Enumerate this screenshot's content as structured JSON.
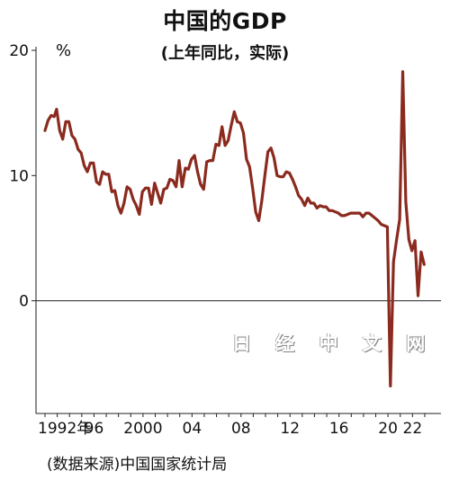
{
  "chart_data": {
    "type": "line",
    "title": "中国的GDP",
    "subtitle": "(上年同比，实际)",
    "ylabel": "%",
    "ylim": [
      -9,
      20
    ],
    "yticks": [
      0,
      10,
      20
    ],
    "x_tick_labels": [
      {
        "t": 1992,
        "label": "1992年"
      },
      {
        "t": 1996,
        "label": "96"
      },
      {
        "t": 2000,
        "label": "2000"
      },
      {
        "t": 2004,
        "label": "04"
      },
      {
        "t": 2008,
        "label": "08"
      },
      {
        "t": 2012,
        "label": "12"
      },
      {
        "t": 2016,
        "label": "16"
      },
      {
        "t": 2020,
        "label": "20"
      },
      {
        "t": 2022,
        "label": "22"
      }
    ],
    "grid": false,
    "series": [
      {
        "color": "#8b2a1e",
        "points": [
          [
            1992.0,
            13.6
          ],
          [
            1992.25,
            14.4
          ],
          [
            1992.5,
            14.8
          ],
          [
            1992.75,
            14.7
          ],
          [
            1992.95,
            15.3
          ],
          [
            1993.2,
            13.6
          ],
          [
            1993.45,
            12.9
          ],
          [
            1993.7,
            14.3
          ],
          [
            1993.95,
            14.3
          ],
          [
            1994.2,
            13.2
          ],
          [
            1994.45,
            12.9
          ],
          [
            1994.7,
            12.1
          ],
          [
            1994.95,
            11.8
          ],
          [
            1995.2,
            10.8
          ],
          [
            1995.45,
            10.3
          ],
          [
            1995.7,
            11.0
          ],
          [
            1995.95,
            11.0
          ],
          [
            1996.2,
            9.5
          ],
          [
            1996.45,
            9.3
          ],
          [
            1996.7,
            10.3
          ],
          [
            1996.95,
            10.1
          ],
          [
            1997.2,
            10.1
          ],
          [
            1997.45,
            8.7
          ],
          [
            1997.7,
            8.8
          ],
          [
            1997.95,
            7.6
          ],
          [
            1998.2,
            7.0
          ],
          [
            1998.45,
            7.8
          ],
          [
            1998.7,
            9.1
          ],
          [
            1998.95,
            8.9
          ],
          [
            1999.2,
            8.1
          ],
          [
            1999.45,
            7.6
          ],
          [
            1999.7,
            6.9
          ],
          [
            1999.95,
            8.7
          ],
          [
            2000.2,
            9.0
          ],
          [
            2000.45,
            9.0
          ],
          [
            2000.7,
            7.7
          ],
          [
            2000.95,
            9.4
          ],
          [
            2001.2,
            8.6
          ],
          [
            2001.45,
            7.8
          ],
          [
            2001.7,
            8.9
          ],
          [
            2001.95,
            9.0
          ],
          [
            2002.2,
            9.7
          ],
          [
            2002.45,
            9.6
          ],
          [
            2002.7,
            9.1
          ],
          [
            2002.95,
            11.2
          ],
          [
            2003.2,
            9.1
          ],
          [
            2003.45,
            10.6
          ],
          [
            2003.7,
            10.5
          ],
          [
            2003.95,
            11.3
          ],
          [
            2004.2,
            11.6
          ],
          [
            2004.45,
            10.3
          ],
          [
            2004.7,
            9.3
          ],
          [
            2004.95,
            8.9
          ],
          [
            2005.2,
            11.1
          ],
          [
            2005.45,
            11.2
          ],
          [
            2005.7,
            11.2
          ],
          [
            2005.95,
            12.5
          ],
          [
            2006.2,
            12.4
          ],
          [
            2006.45,
            13.9
          ],
          [
            2006.7,
            12.4
          ],
          [
            2006.95,
            12.8
          ],
          [
            2007.2,
            14.0
          ],
          [
            2007.45,
            15.1
          ],
          [
            2007.7,
            14.3
          ],
          [
            2007.95,
            14.2
          ],
          [
            2008.2,
            13.4
          ],
          [
            2008.45,
            11.3
          ],
          [
            2008.7,
            10.7
          ],
          [
            2008.95,
            9.0
          ],
          [
            2009.2,
            7.1
          ],
          [
            2009.45,
            6.4
          ],
          [
            2009.7,
            8.0
          ],
          [
            2009.95,
            10.0
          ],
          [
            2010.2,
            11.9
          ],
          [
            2010.45,
            12.2
          ],
          [
            2010.7,
            11.4
          ],
          [
            2010.95,
            10.0
          ],
          [
            2011.2,
            9.9
          ],
          [
            2011.45,
            9.9
          ],
          [
            2011.7,
            10.3
          ],
          [
            2011.95,
            10.2
          ],
          [
            2012.2,
            9.7
          ],
          [
            2012.45,
            9.1
          ],
          [
            2012.7,
            8.4
          ],
          [
            2012.95,
            8.1
          ],
          [
            2013.2,
            7.6
          ],
          [
            2013.45,
            8.2
          ],
          [
            2013.7,
            7.8
          ],
          [
            2013.95,
            7.8
          ],
          [
            2014.2,
            7.4
          ],
          [
            2014.45,
            7.6
          ],
          [
            2014.7,
            7.5
          ],
          [
            2014.95,
            7.5
          ],
          [
            2015.2,
            7.2
          ],
          [
            2015.45,
            7.2
          ],
          [
            2015.7,
            7.1
          ],
          [
            2015.95,
            7.0
          ],
          [
            2016.2,
            6.8
          ],
          [
            2016.45,
            6.8
          ],
          [
            2016.7,
            6.9
          ],
          [
            2016.95,
            7.0
          ],
          [
            2017.2,
            7.0
          ],
          [
            2017.45,
            7.0
          ],
          [
            2017.7,
            7.0
          ],
          [
            2017.95,
            6.7
          ],
          [
            2018.2,
            7.0
          ],
          [
            2018.45,
            7.0
          ],
          [
            2018.7,
            6.8
          ],
          [
            2018.95,
            6.6
          ],
          [
            2019.2,
            6.4
          ],
          [
            2019.45,
            6.1
          ],
          [
            2019.7,
            6.0
          ],
          [
            2019.95,
            5.9
          ],
          [
            2020.2,
            -6.8
          ],
          [
            2020.45,
            3.1
          ],
          [
            2020.7,
            4.9
          ],
          [
            2020.95,
            6.5
          ],
          [
            2021.2,
            18.3
          ],
          [
            2021.45,
            7.9
          ],
          [
            2021.7,
            4.9
          ],
          [
            2021.95,
            4.0
          ],
          [
            2022.2,
            4.8
          ],
          [
            2022.45,
            0.4
          ],
          [
            2022.7,
            3.9
          ],
          [
            2022.95,
            2.9
          ]
        ]
      }
    ]
  },
  "source": "(数据来源)中国国家统计局",
  "watermark": "日 经 中 文 网"
}
